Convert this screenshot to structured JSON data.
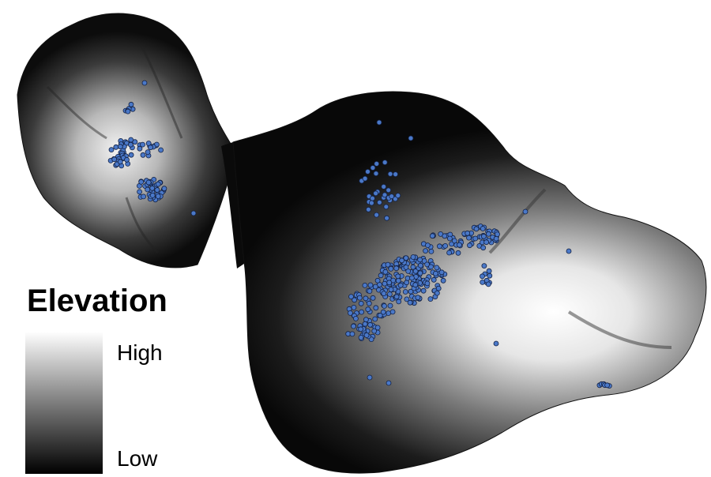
{
  "legend": {
    "title": "Elevation",
    "high": "High",
    "low": "Low"
  }
}
